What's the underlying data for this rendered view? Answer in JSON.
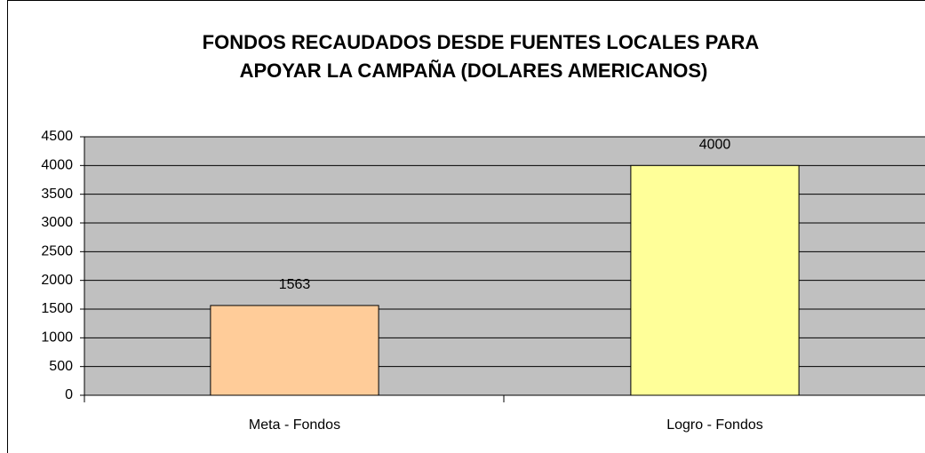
{
  "chart_data": {
    "type": "bar",
    "title": [
      "FONDOS RECAUDADOS DESDE FUENTES LOCALES PARA",
      "APOYAR LA CAMPAÑA (DOLARES AMERICANOS)"
    ],
    "categories": [
      "Meta - Fondos",
      "Logro - Fondos"
    ],
    "values": [
      1563,
      4000
    ],
    "colors": [
      "#ffcc99",
      "#ffff99"
    ],
    "ylim": [
      0,
      4500
    ],
    "yticks": [
      0,
      500,
      1000,
      1500,
      2000,
      2500,
      3000,
      3500,
      4000,
      4500
    ],
    "grid": true
  }
}
